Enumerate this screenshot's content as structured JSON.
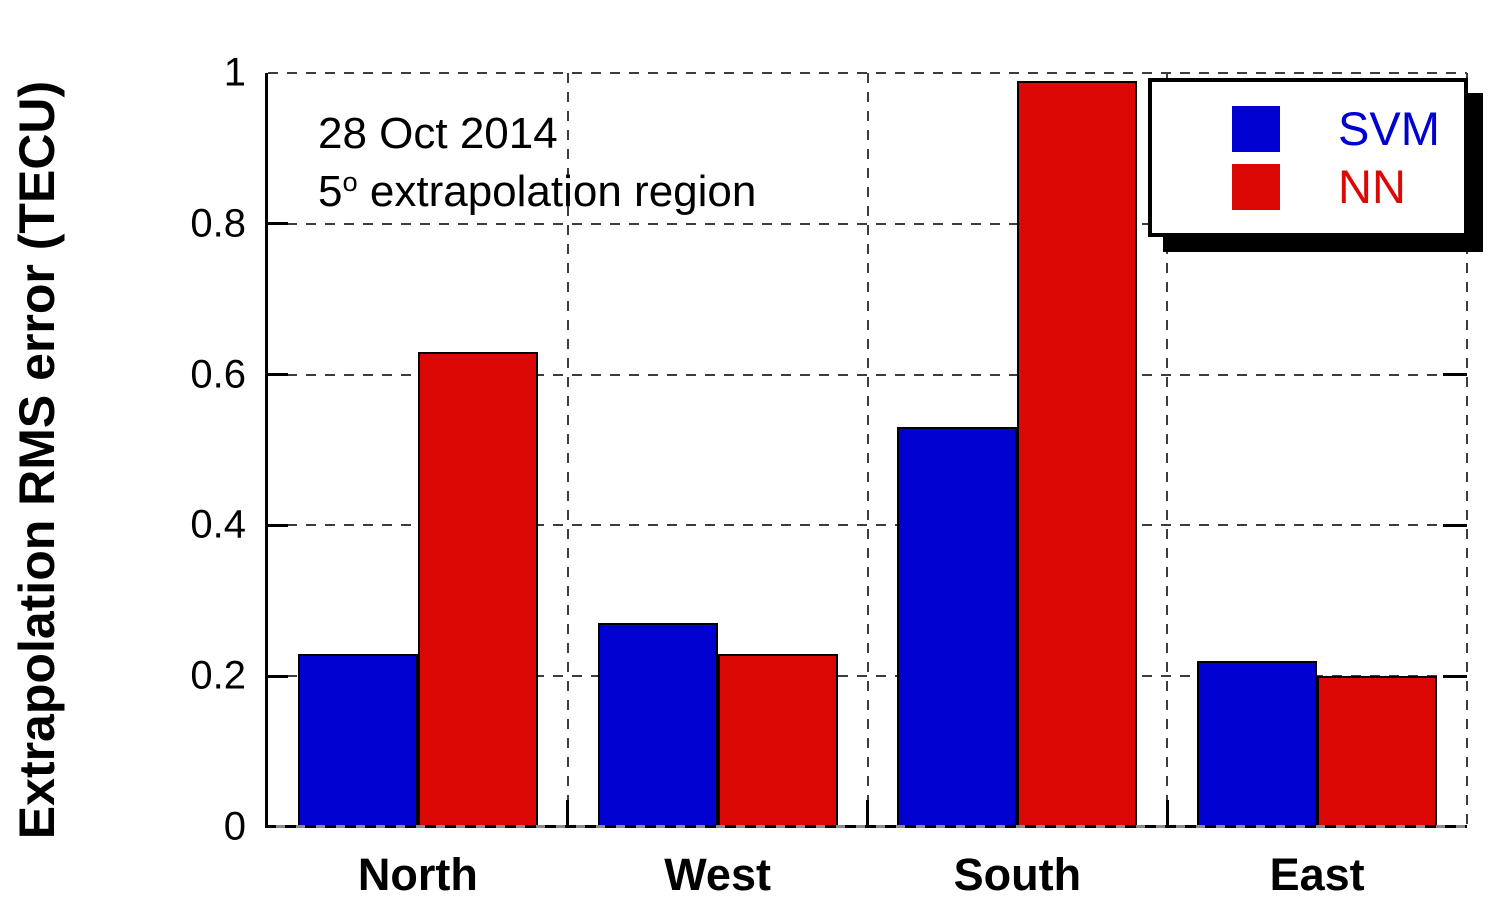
{
  "chart_data": {
    "type": "bar",
    "title": "",
    "xlabel": "",
    "ylabel": "Extrapolation RMS error (TECU)",
    "categories": [
      "North",
      "West",
      "South",
      "East"
    ],
    "series": [
      {
        "name": "SVM",
        "color": "#0000d0",
        "values": [
          0.23,
          0.27,
          0.53,
          0.22
        ]
      },
      {
        "name": "NN",
        "color": "#dc0806",
        "values": [
          0.63,
          0.23,
          0.99,
          0.2
        ]
      }
    ],
    "ylim": [
      0,
      1
    ],
    "yticks": [
      0,
      0.2,
      0.4,
      0.6,
      0.8,
      1
    ],
    "ytick_labels": [
      "0",
      "0.2",
      "0.4",
      "0.6",
      "0.8",
      "1"
    ],
    "grid": "dashed gridlines on both axes, box frame",
    "legend_position": "top-right",
    "annotation": {
      "line1": "28 Oct 2014",
      "line2_base": "5",
      "line2_sup": "o",
      "line2_rest": " extrapolation region"
    }
  }
}
